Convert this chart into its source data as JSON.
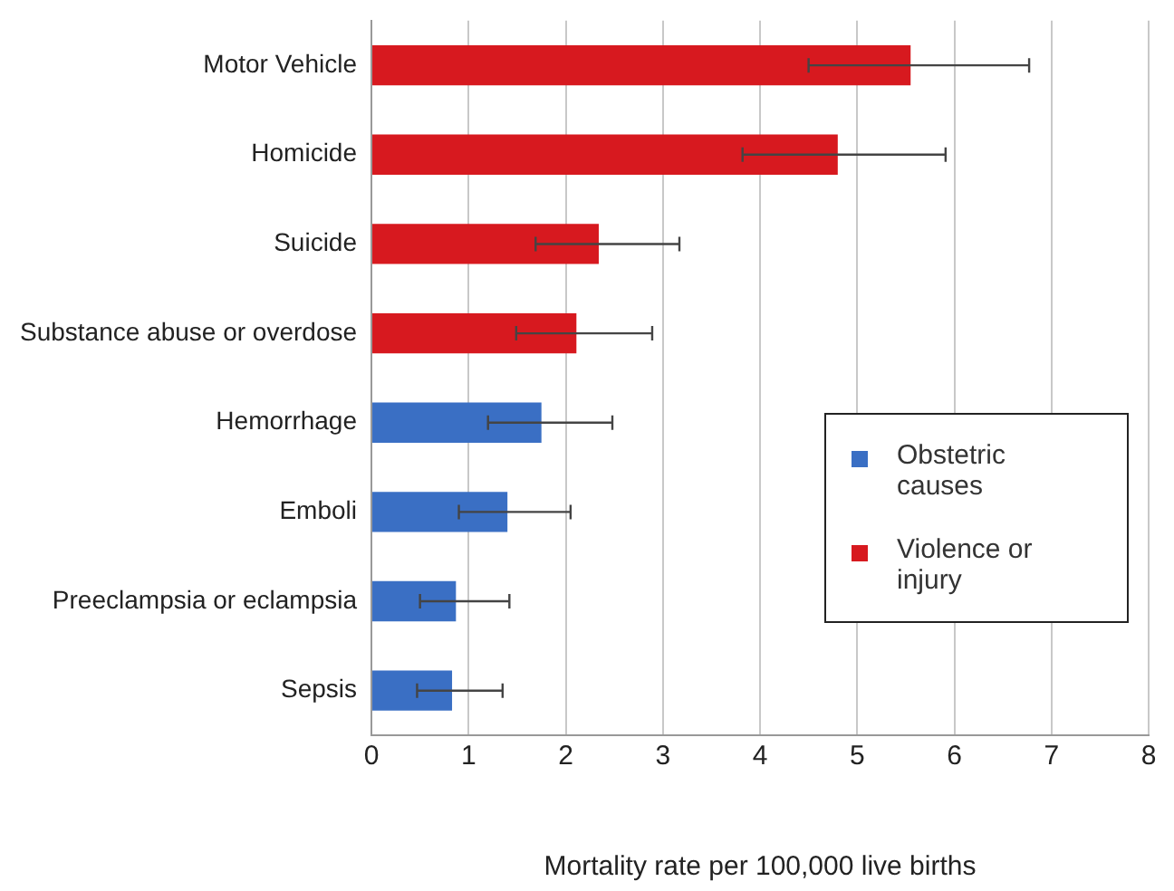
{
  "chart_data": {
    "type": "bar",
    "orientation": "horizontal",
    "xlabel": "Mortality rate per 100,000 live births",
    "categories": [
      "Motor Vehicle",
      "Homicide",
      "Suicide",
      "Substance abuse or overdose",
      "Hemorrhage",
      "Emboli",
      "Preeclampsia or eclampsia",
      "Sepsis"
    ],
    "series": [
      {
        "name": "Obstetric causes",
        "color": "#3a6fc4",
        "values": [
          null,
          null,
          null,
          null,
          1.75,
          1.4,
          0.87,
          0.83
        ],
        "errors": [
          null,
          null,
          null,
          null,
          [
            1.2,
            2.48
          ],
          [
            0.9,
            2.05
          ],
          [
            0.5,
            1.42
          ],
          [
            0.47,
            1.35
          ]
        ]
      },
      {
        "name": "Violence or injury",
        "color": "#d7191f",
        "values": [
          5.55,
          4.8,
          2.34,
          2.11,
          null,
          null,
          null,
          null
        ],
        "errors": [
          [
            4.5,
            6.77
          ],
          [
            3.82,
            5.91
          ],
          [
            1.69,
            3.17
          ],
          [
            1.49,
            2.89
          ],
          null,
          null,
          null,
          null
        ]
      }
    ],
    "xlim": [
      0,
      8
    ],
    "xticks": [
      0,
      1,
      2,
      3,
      4,
      5,
      6,
      7,
      8
    ],
    "grid": "x",
    "legend": "right"
  }
}
